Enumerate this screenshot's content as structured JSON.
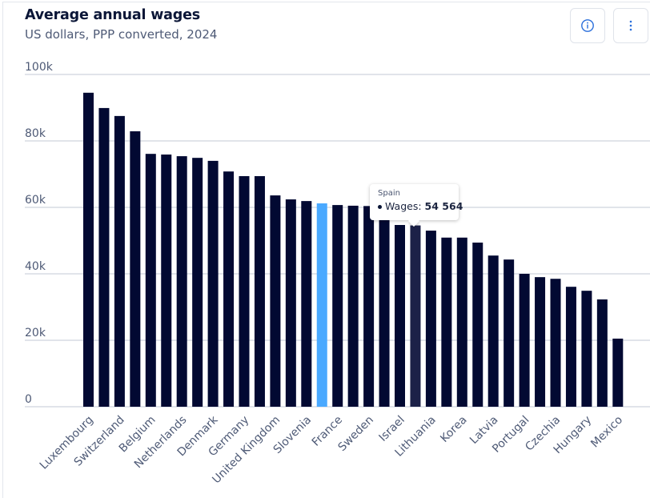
{
  "header": {
    "title": "Average annual wages",
    "subtitle": "US dollars, PPP converted, 2024",
    "info_button_icon": "info-icon",
    "more_button_icon": "more-vertical-icon"
  },
  "colors": {
    "bar": "#020932",
    "highlight": "#4aa9ff",
    "hovered": "#1c2148",
    "grid": "#c3cad6",
    "axis_text": "#4e5a76"
  },
  "tooltip": {
    "country": "Spain",
    "series_label": "Wages: ",
    "value": "54 564"
  },
  "chart_data": {
    "type": "bar",
    "title": "Average annual wages",
    "subtitle": "US dollars, PPP converted, 2024",
    "xlabel": "",
    "ylabel": "",
    "ylim": [
      0,
      100000
    ],
    "yticks": [
      0,
      20000,
      40000,
      60000,
      80000,
      100000
    ],
    "ytick_labels": [
      "0",
      "20k",
      "40k",
      "60k",
      "80k",
      "100k"
    ],
    "grid": true,
    "legend": "none",
    "series": [
      {
        "name": "Wages",
        "categories": [
          "Luxembourg",
          "",
          "Switzerland",
          "",
          "Belgium",
          "",
          "Netherlands",
          "",
          "Denmark",
          "",
          "Germany",
          "",
          "United Kingdom",
          "",
          "Slovenia",
          "",
          "France",
          "",
          "Sweden",
          "",
          "Israel",
          "Spain",
          "Lithuania",
          "",
          "Korea",
          "",
          "Latvia",
          "",
          "Portugal",
          "",
          "Czechia",
          "",
          "Hungary",
          "",
          "Mexico"
        ],
        "category_label_visible": [
          true,
          false,
          true,
          false,
          true,
          false,
          true,
          false,
          true,
          false,
          true,
          false,
          true,
          false,
          true,
          false,
          true,
          false,
          true,
          false,
          true,
          false,
          true,
          false,
          true,
          false,
          true,
          false,
          true,
          false,
          true,
          false,
          true,
          false,
          true
        ],
        "values": [
          94500,
          89900,
          87500,
          82900,
          76100,
          75900,
          75400,
          74900,
          74000,
          70800,
          69400,
          69400,
          63600,
          62400,
          61900,
          61200,
          60700,
          60500,
          60400,
          58000,
          54700,
          54564,
          53000,
          50900,
          50900,
          49400,
          45500,
          44300,
          40000,
          39000,
          38500,
          36100,
          34900,
          32300,
          20500
        ],
        "highlighted_index": 15,
        "hovered_index": 21
      }
    ]
  }
}
